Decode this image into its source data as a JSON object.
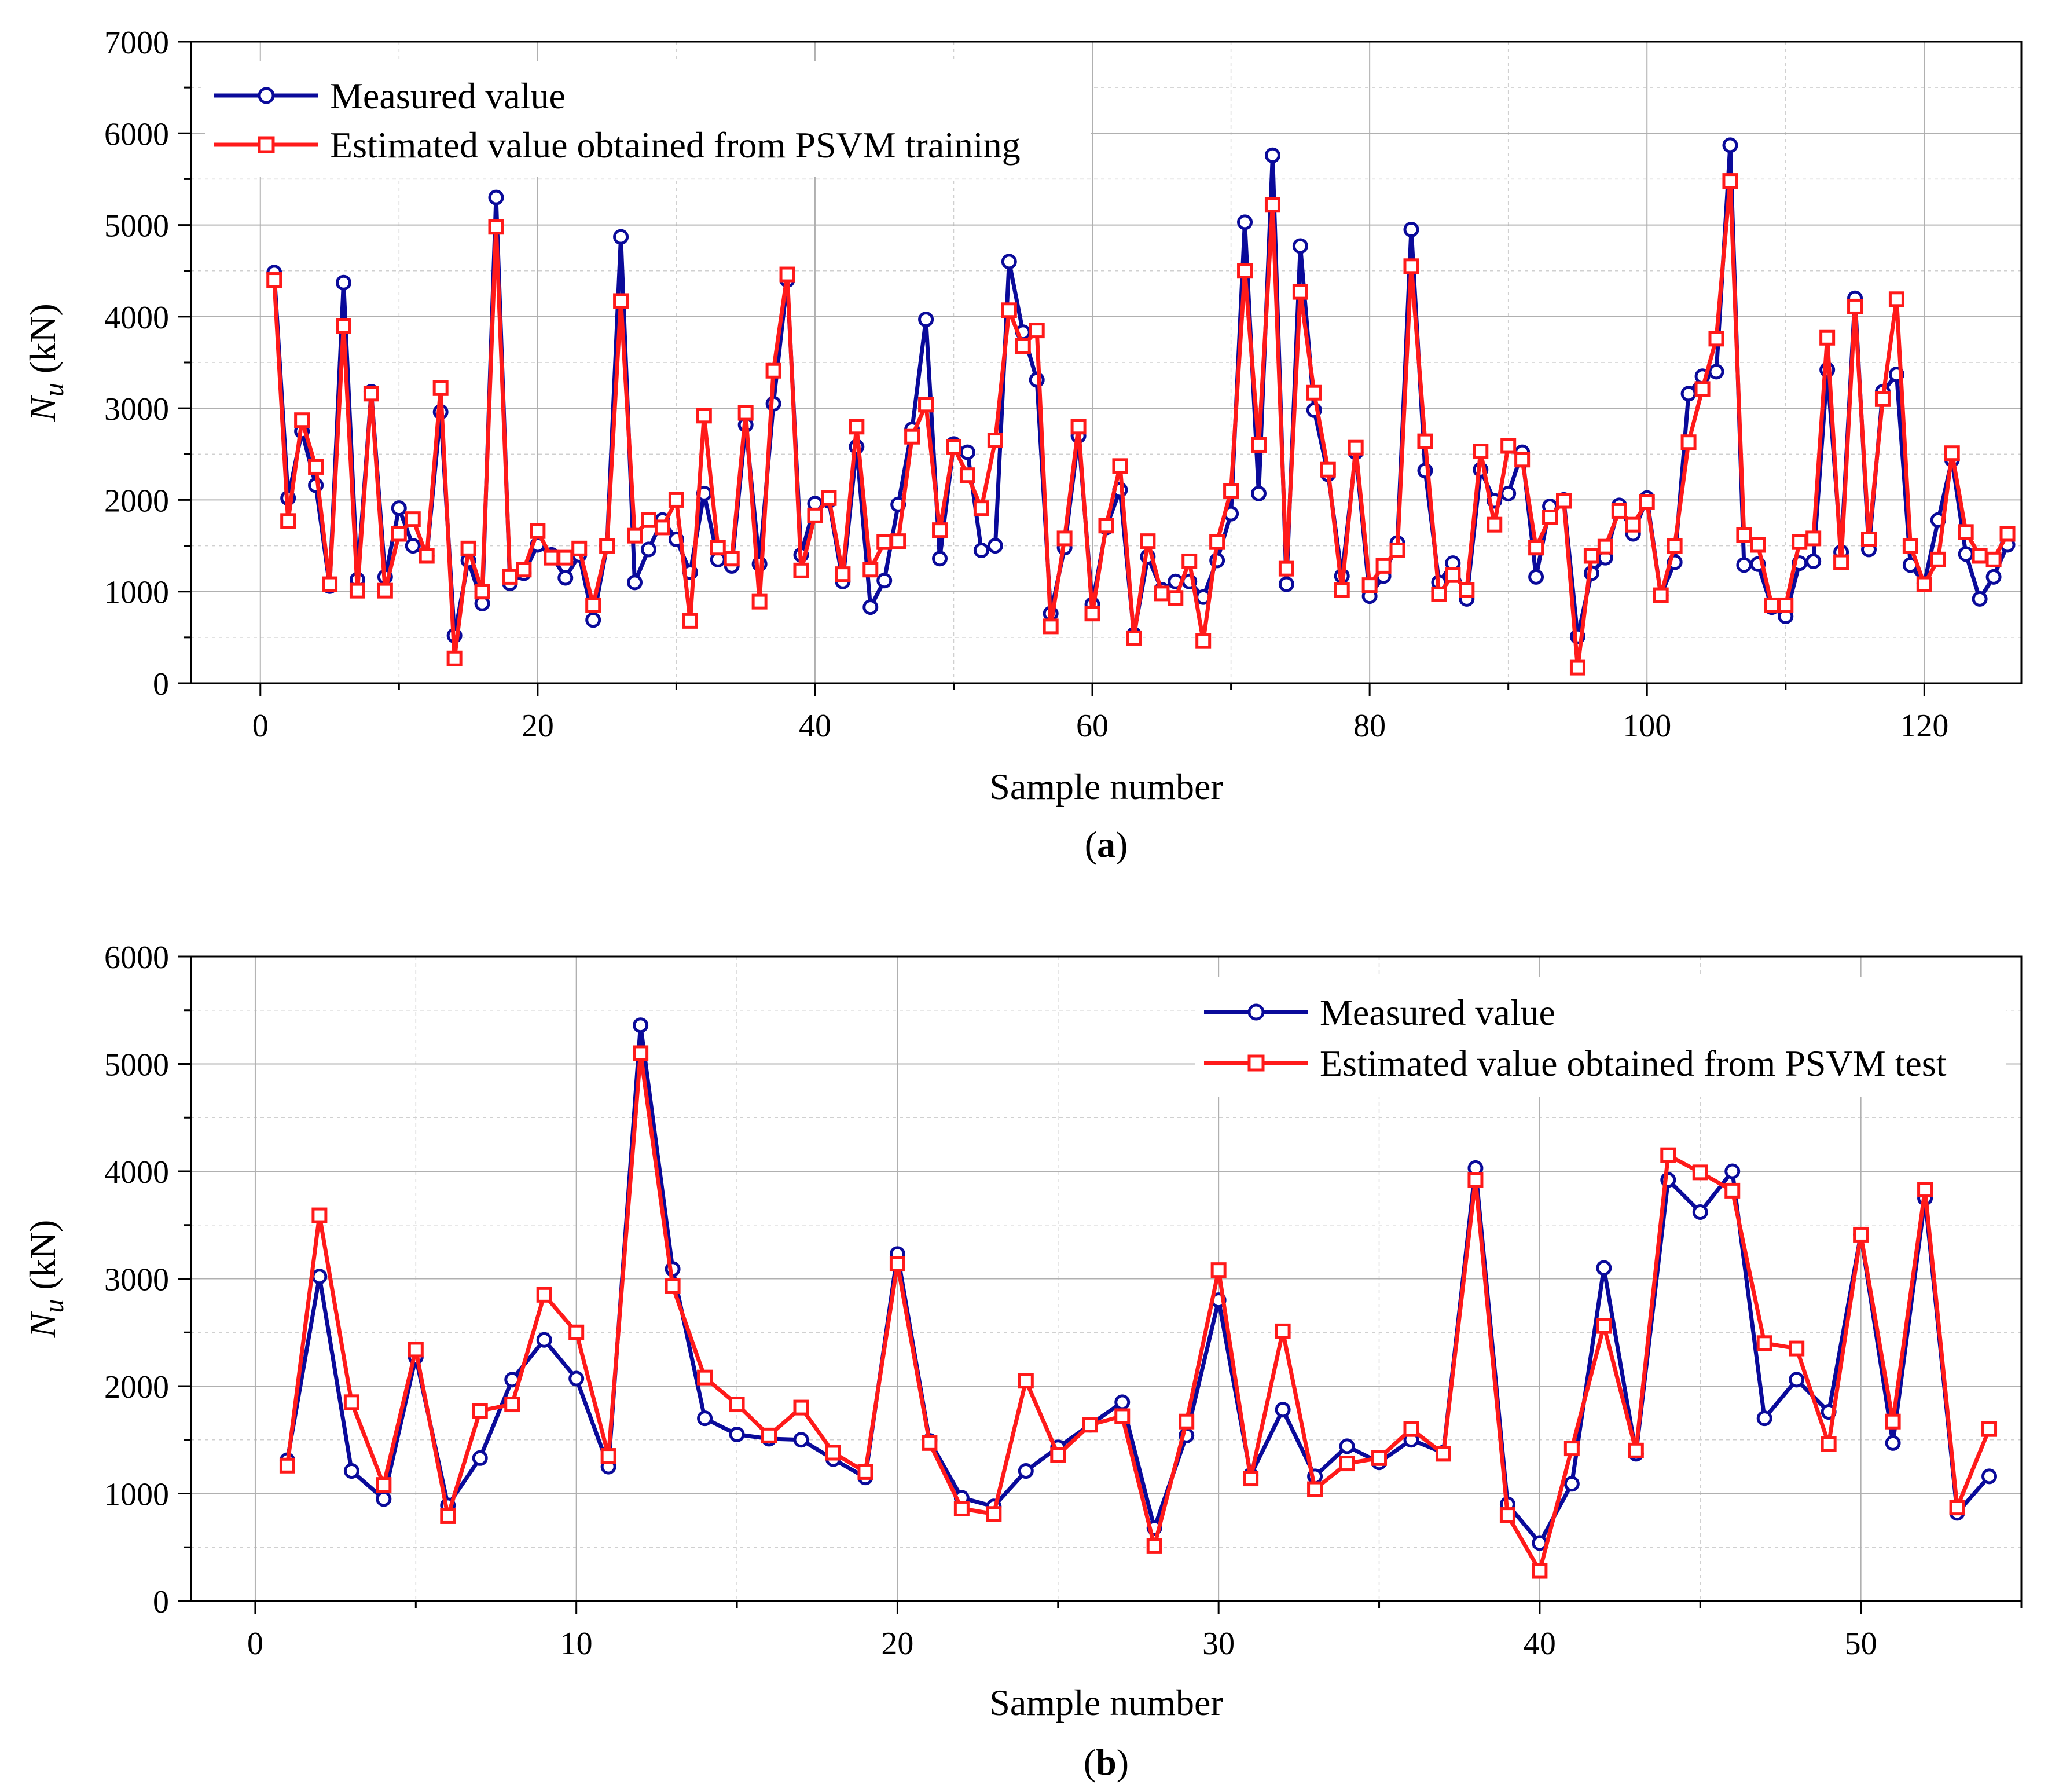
{
  "colors": {
    "measured": "#0a0a9a",
    "estimated": "#ff1a1a"
  },
  "chart_data": [
    {
      "type": "line",
      "panel_label": "a",
      "title": "",
      "xlabel": "Sample number",
      "ylabel_main": "N",
      "ylabel_sub": "u",
      "ylabel_unit": " (kN)",
      "xlim": [
        -5,
        127
      ],
      "ylim": [
        0,
        7000
      ],
      "xticks": [
        0,
        20,
        40,
        60,
        80,
        100,
        120
      ],
      "yticks": [
        0,
        1000,
        2000,
        3000,
        4000,
        5000,
        6000,
        7000
      ],
      "legend_position": "top-left",
      "grid": true,
      "x": [
        1,
        2,
        3,
        4,
        5,
        6,
        7,
        8,
        9,
        10,
        11,
        12,
        13,
        14,
        15,
        16,
        17,
        18,
        19,
        20,
        21,
        22,
        23,
        24,
        25,
        26,
        27,
        28,
        29,
        30,
        31,
        32,
        33,
        34,
        35,
        36,
        37,
        38,
        39,
        40,
        41,
        42,
        43,
        44,
        45,
        46,
        47,
        48,
        49,
        50,
        51,
        52,
        53,
        54,
        55,
        56,
        57,
        58,
        59,
        60,
        61,
        62,
        63,
        64,
        65,
        66,
        67,
        68,
        69,
        70,
        71,
        72,
        73,
        74,
        75,
        76,
        77,
        78,
        79,
        80,
        81,
        82,
        83,
        84,
        85,
        86,
        87,
        88,
        89,
        90,
        91,
        92,
        93,
        94,
        95,
        96,
        97,
        98,
        99,
        100,
        101,
        102,
        103,
        104,
        105,
        106,
        107,
        108,
        109,
        110,
        111,
        112,
        113,
        114,
        115,
        116,
        117,
        118,
        119,
        120,
        121,
        122,
        123,
        124,
        125,
        126
      ],
      "series": [
        {
          "name": "Measured value",
          "marker": "circle",
          "color_key": "measured",
          "values": [
            4480,
            2020,
            2750,
            2160,
            1060,
            4370,
            1130,
            3180,
            1160,
            1910,
            1500,
            1390,
            2960,
            520,
            1340,
            870,
            5300,
            1090,
            1200,
            1510,
            1400,
            1150,
            1400,
            690,
            1500,
            4870,
            1100,
            1460,
            1780,
            1570,
            1210,
            2070,
            1350,
            1280,
            2820,
            1300,
            3050,
            4400,
            1400,
            1960,
            1990,
            1110,
            2580,
            830,
            1120,
            1950,
            2770,
            3970,
            1360,
            2610,
            2520,
            1450,
            1500,
            4600,
            3830,
            3310,
            760,
            1480,
            2700,
            860,
            1700,
            2110,
            530,
            1380,
            1020,
            1110,
            1110,
            940,
            1340,
            1850,
            5030,
            2070,
            5760,
            1080,
            4770,
            2980,
            2280,
            1170,
            2520,
            950,
            1170,
            1530,
            4950,
            2320,
            1100,
            1310,
            920,
            2330,
            1990,
            2070,
            2520,
            1160,
            1930,
            2000,
            510,
            1200,
            1370,
            1940,
            1630,
            2020,
            960,
            1320,
            3160,
            3350,
            3400,
            5870,
            1290,
            1300,
            830,
            730,
            1310,
            1330,
            3420,
            1430,
            4200,
            1460,
            3180,
            3370,
            1290,
            1090,
            1780,
            2440,
            1410,
            920,
            1160,
            1510
          ]
        },
        {
          "name": "Estimated value obtained from PSVM training",
          "marker": "square",
          "color_key": "estimated",
          "values": [
            4400,
            1770,
            2870,
            2360,
            1080,
            3900,
            1010,
            3160,
            1010,
            1630,
            1790,
            1390,
            3220,
            270,
            1470,
            1000,
            4980,
            1160,
            1240,
            1660,
            1370,
            1370,
            1470,
            850,
            1500,
            4170,
            1610,
            1780,
            1700,
            2000,
            680,
            2920,
            1480,
            1360,
            2950,
            890,
            3410,
            4460,
            1230,
            1830,
            2020,
            1190,
            2800,
            1240,
            1540,
            1550,
            2690,
            3040,
            1670,
            2580,
            2270,
            1910,
            2650,
            4070,
            3680,
            3850,
            620,
            1580,
            2800,
            760,
            1720,
            2370,
            490,
            1550,
            980,
            930,
            1330,
            460,
            1540,
            2100,
            4500,
            2600,
            5220,
            1250,
            4270,
            3170,
            2330,
            1020,
            2570,
            1070,
            1280,
            1450,
            4550,
            2640,
            970,
            1180,
            1020,
            2530,
            1730,
            2590,
            2440,
            1480,
            1810,
            1990,
            170,
            1390,
            1490,
            1880,
            1730,
            1980,
            960,
            1500,
            2630,
            3210,
            3760,
            5480,
            1620,
            1510,
            850,
            850,
            1540,
            1580,
            3770,
            1320,
            4110,
            1570,
            3100,
            4190,
            1500,
            1080,
            1350,
            2510,
            1650,
            1390,
            1350,
            1630
          ]
        }
      ]
    },
    {
      "type": "line",
      "panel_label": "b",
      "title": "",
      "xlabel": "Sample number",
      "ylabel_main": "N",
      "ylabel_sub": "u",
      "ylabel_unit": " (kN)",
      "xlim": [
        -2,
        55
      ],
      "ylim": [
        0,
        6000
      ],
      "xticks": [
        0,
        10,
        20,
        30,
        40,
        50
      ],
      "yticks": [
        0,
        1000,
        2000,
        3000,
        4000,
        5000,
        6000
      ],
      "legend_position": "top-right",
      "grid": true,
      "x": [
        1,
        2,
        3,
        4,
        5,
        6,
        7,
        8,
        9,
        10,
        11,
        12,
        13,
        14,
        15,
        16,
        17,
        18,
        19,
        20,
        21,
        22,
        23,
        24,
        25,
        26,
        27,
        28,
        29,
        30,
        31,
        32,
        33,
        34,
        35,
        36,
        37,
        38,
        39,
        40,
        41,
        42,
        43,
        44,
        45,
        46,
        47,
        48,
        49,
        50,
        51,
        52,
        53,
        54
      ],
      "series": [
        {
          "name": "Measured value",
          "marker": "circle",
          "color_key": "measured",
          "values": [
            1310,
            3020,
            1210,
            950,
            2270,
            890,
            1330,
            2060,
            2430,
            2070,
            1250,
            5360,
            3090,
            1700,
            1550,
            1510,
            1500,
            1320,
            1150,
            3230,
            1490,
            960,
            880,
            1210,
            1430,
            1640,
            1850,
            680,
            1540,
            2800,
            1170,
            1780,
            1160,
            1440,
            1290,
            1500,
            1380,
            4030,
            900,
            540,
            1090,
            3100,
            1370,
            3920,
            3620,
            4000,
            1700,
            2060,
            1760,
            3410,
            1470,
            3750,
            820,
            1160
          ]
        },
        {
          "name": "Estimated value obtained from PSVM test",
          "marker": "square",
          "color_key": "estimated",
          "values": [
            1260,
            3590,
            1850,
            1080,
            2340,
            790,
            1770,
            1830,
            2850,
            2500,
            1350,
            5100,
            2930,
            2080,
            1830,
            1540,
            1800,
            1380,
            1200,
            3140,
            1470,
            860,
            810,
            2050,
            1360,
            1640,
            1720,
            510,
            1670,
            3080,
            1140,
            2510,
            1040,
            1280,
            1330,
            1600,
            1370,
            3920,
            800,
            280,
            1420,
            2560,
            1400,
            4150,
            3990,
            3820,
            2400,
            2350,
            1460,
            3410,
            1670,
            3830,
            870,
            1600
          ]
        }
      ]
    }
  ]
}
